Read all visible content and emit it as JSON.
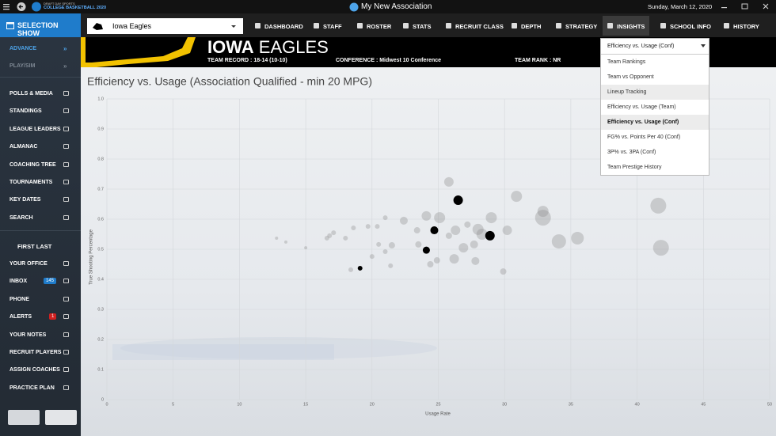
{
  "top_bar": {
    "brand_line1": "DRAFT DAY SPORTS",
    "brand_line2": "COLLEGE BASKETBALL 2020",
    "association": "My New Association",
    "date": "Sunday, March 12, 2020"
  },
  "sidebar": {
    "header": "SELECTION SHOW",
    "advance": "ADVANCE",
    "play_sim": "PLAY/SIM",
    "menu": [
      "POLLS & MEDIA",
      "STANDINGS",
      "LEAGUE LEADERS",
      "ALMANAC",
      "COACHING TREE",
      "TOURNAMENTS",
      "KEY DATES",
      "SEARCH"
    ],
    "user": "FIRST LAST",
    "user_menu": [
      {
        "label": "YOUR OFFICE"
      },
      {
        "label": "INBOX",
        "badge": 145
      },
      {
        "label": "PHONE"
      },
      {
        "label": "ALERTS",
        "badge": 1
      },
      {
        "label": "YOUR NOTES"
      },
      {
        "label": "RECRUIT PLAYERS"
      },
      {
        "label": "ASSIGN COACHES"
      },
      {
        "label": "PRACTICE PLAN"
      }
    ]
  },
  "team_selector": "Iowa Eagles",
  "nav": [
    "DASHBOARD",
    "STAFF",
    "ROSTER",
    "STATS",
    "RECRUIT CLASS",
    "DEPTH",
    "STRATEGY",
    "INSIGHTS",
    "SCHOOL INFO",
    "HISTORY"
  ],
  "team_header": {
    "name_bold": "IOWA",
    "name_rest": "EAGLES",
    "record": "TEAM RECORD : 18-14 (10-10)",
    "conference": "CONFERENCE : Midwest 10 Conference",
    "rank": "TEAM RANK : NR"
  },
  "view_select": {
    "selected": "Efficiency vs. Usage (Conf)",
    "options": [
      "Team Rankings",
      "Team vs Opponent",
      "Lineup Tracking",
      "Efficiency vs. Usage (Team)",
      "Efficiency vs. Usage (Conf)",
      "FG% vs. Points Per 40 (Conf)",
      "3P% vs. 3PA (Conf)",
      "Team Prestige History"
    ]
  },
  "chart_data": {
    "type": "scatter",
    "title": "Efficiency vs. Usage (Association Qualified - min 20 MPG)",
    "x_label": "Usage Rate",
    "y_label": "True Shooting Percentage",
    "xlim": [
      0,
      50
    ],
    "xticks": [
      0,
      5,
      10,
      15,
      20,
      25,
      30,
      35,
      40,
      45,
      50
    ],
    "ylim": [
      0,
      1
    ],
    "yticks": [
      0,
      0.1,
      0.2,
      0.3,
      0.4,
      0.5,
      0.6,
      0.7,
      0.8,
      0.9,
      {
        "value": 1,
        "label": "1.0"
      }
    ],
    "grid": true,
    "series": [
      {
        "color": "rgba(140,140,140,0.35)",
        "x": [
          12.8,
          13.5,
          15.0,
          16.6,
          16.8,
          17.1,
          18.0,
          18.4,
          18.6,
          19.7,
          20.4,
          21.0,
          20.5,
          20.0,
          21.0,
          21.5,
          21.4,
          22.4,
          23.4,
          23.5,
          24.1,
          24.4,
          24.9,
          25.1,
          25.8,
          25.8,
          26.2,
          26.3,
          26.9,
          27.2,
          27.7,
          28.0,
          29.0,
          29.9,
          30.2,
          30.9,
          32.9,
          32.9,
          34.1,
          35.5,
          41.6,
          41.8,
          27.8,
          28.3
        ],
        "values": [
          0.537,
          0.524,
          0.505,
          0.537,
          0.545,
          0.555,
          0.537,
          0.432,
          0.571,
          0.576,
          0.576,
          0.605,
          0.516,
          0.476,
          0.492,
          0.513,
          0.445,
          0.595,
          0.563,
          0.516,
          0.611,
          0.45,
          0.463,
          0.605,
          0.724,
          0.545,
          0.468,
          0.563,
          0.505,
          0.582,
          0.516,
          0.566,
          0.605,
          0.426,
          0.563,
          0.676,
          0.626,
          0.605,
          0.526,
          0.537,
          0.645,
          0.505,
          0.461,
          0.55
        ],
        "sizes": [
          2,
          2,
          2,
          3,
          3,
          3,
          3,
          3,
          3,
          3,
          3,
          3,
          3,
          3,
          3,
          4,
          3,
          5,
          4,
          4,
          6,
          4,
          4,
          7,
          6,
          4,
          6,
          6,
          6,
          4,
          5,
          7,
          7,
          4,
          6,
          7,
          7,
          10,
          9,
          8,
          10,
          10,
          5,
          7
        ]
      },
      {
        "color": "#000000",
        "x": [
          26.5,
          24.7,
          28.9,
          24.1,
          19.1
        ],
        "values": [
          0.663,
          0.563,
          0.545,
          0.497,
          0.437
        ],
        "sizes": [
          6,
          5,
          6,
          4.5,
          3
        ]
      }
    ]
  }
}
